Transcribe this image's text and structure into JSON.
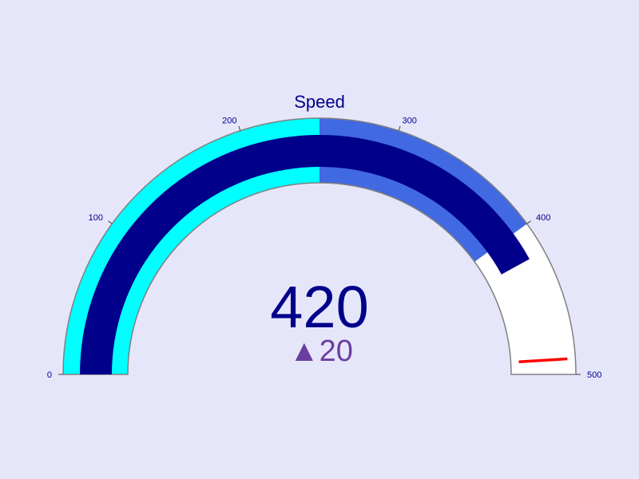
{
  "chart_data": {
    "type": "gauge",
    "title": "Speed",
    "value": 420,
    "reference": 400,
    "delta_display": "▲20",
    "axis_range": [
      0,
      500
    ],
    "ticks": [
      0,
      100,
      200,
      300,
      400,
      500
    ],
    "tick_labels": [
      "0",
      "100",
      "200",
      "300",
      "400",
      "500"
    ],
    "steps": [
      {
        "range": [
          0,
          250
        ],
        "color": "#00ffff"
      },
      {
        "range": [
          250,
          400
        ],
        "color": "#4169e1"
      }
    ],
    "bar_color": "#00008b",
    "threshold": {
      "value": 490,
      "color": "#ff0000"
    },
    "colors": {
      "background": "#e6e6fa",
      "gauge_bg": "#ffffff",
      "border": "#808080",
      "delta_increasing": "#6b3fa0"
    }
  }
}
